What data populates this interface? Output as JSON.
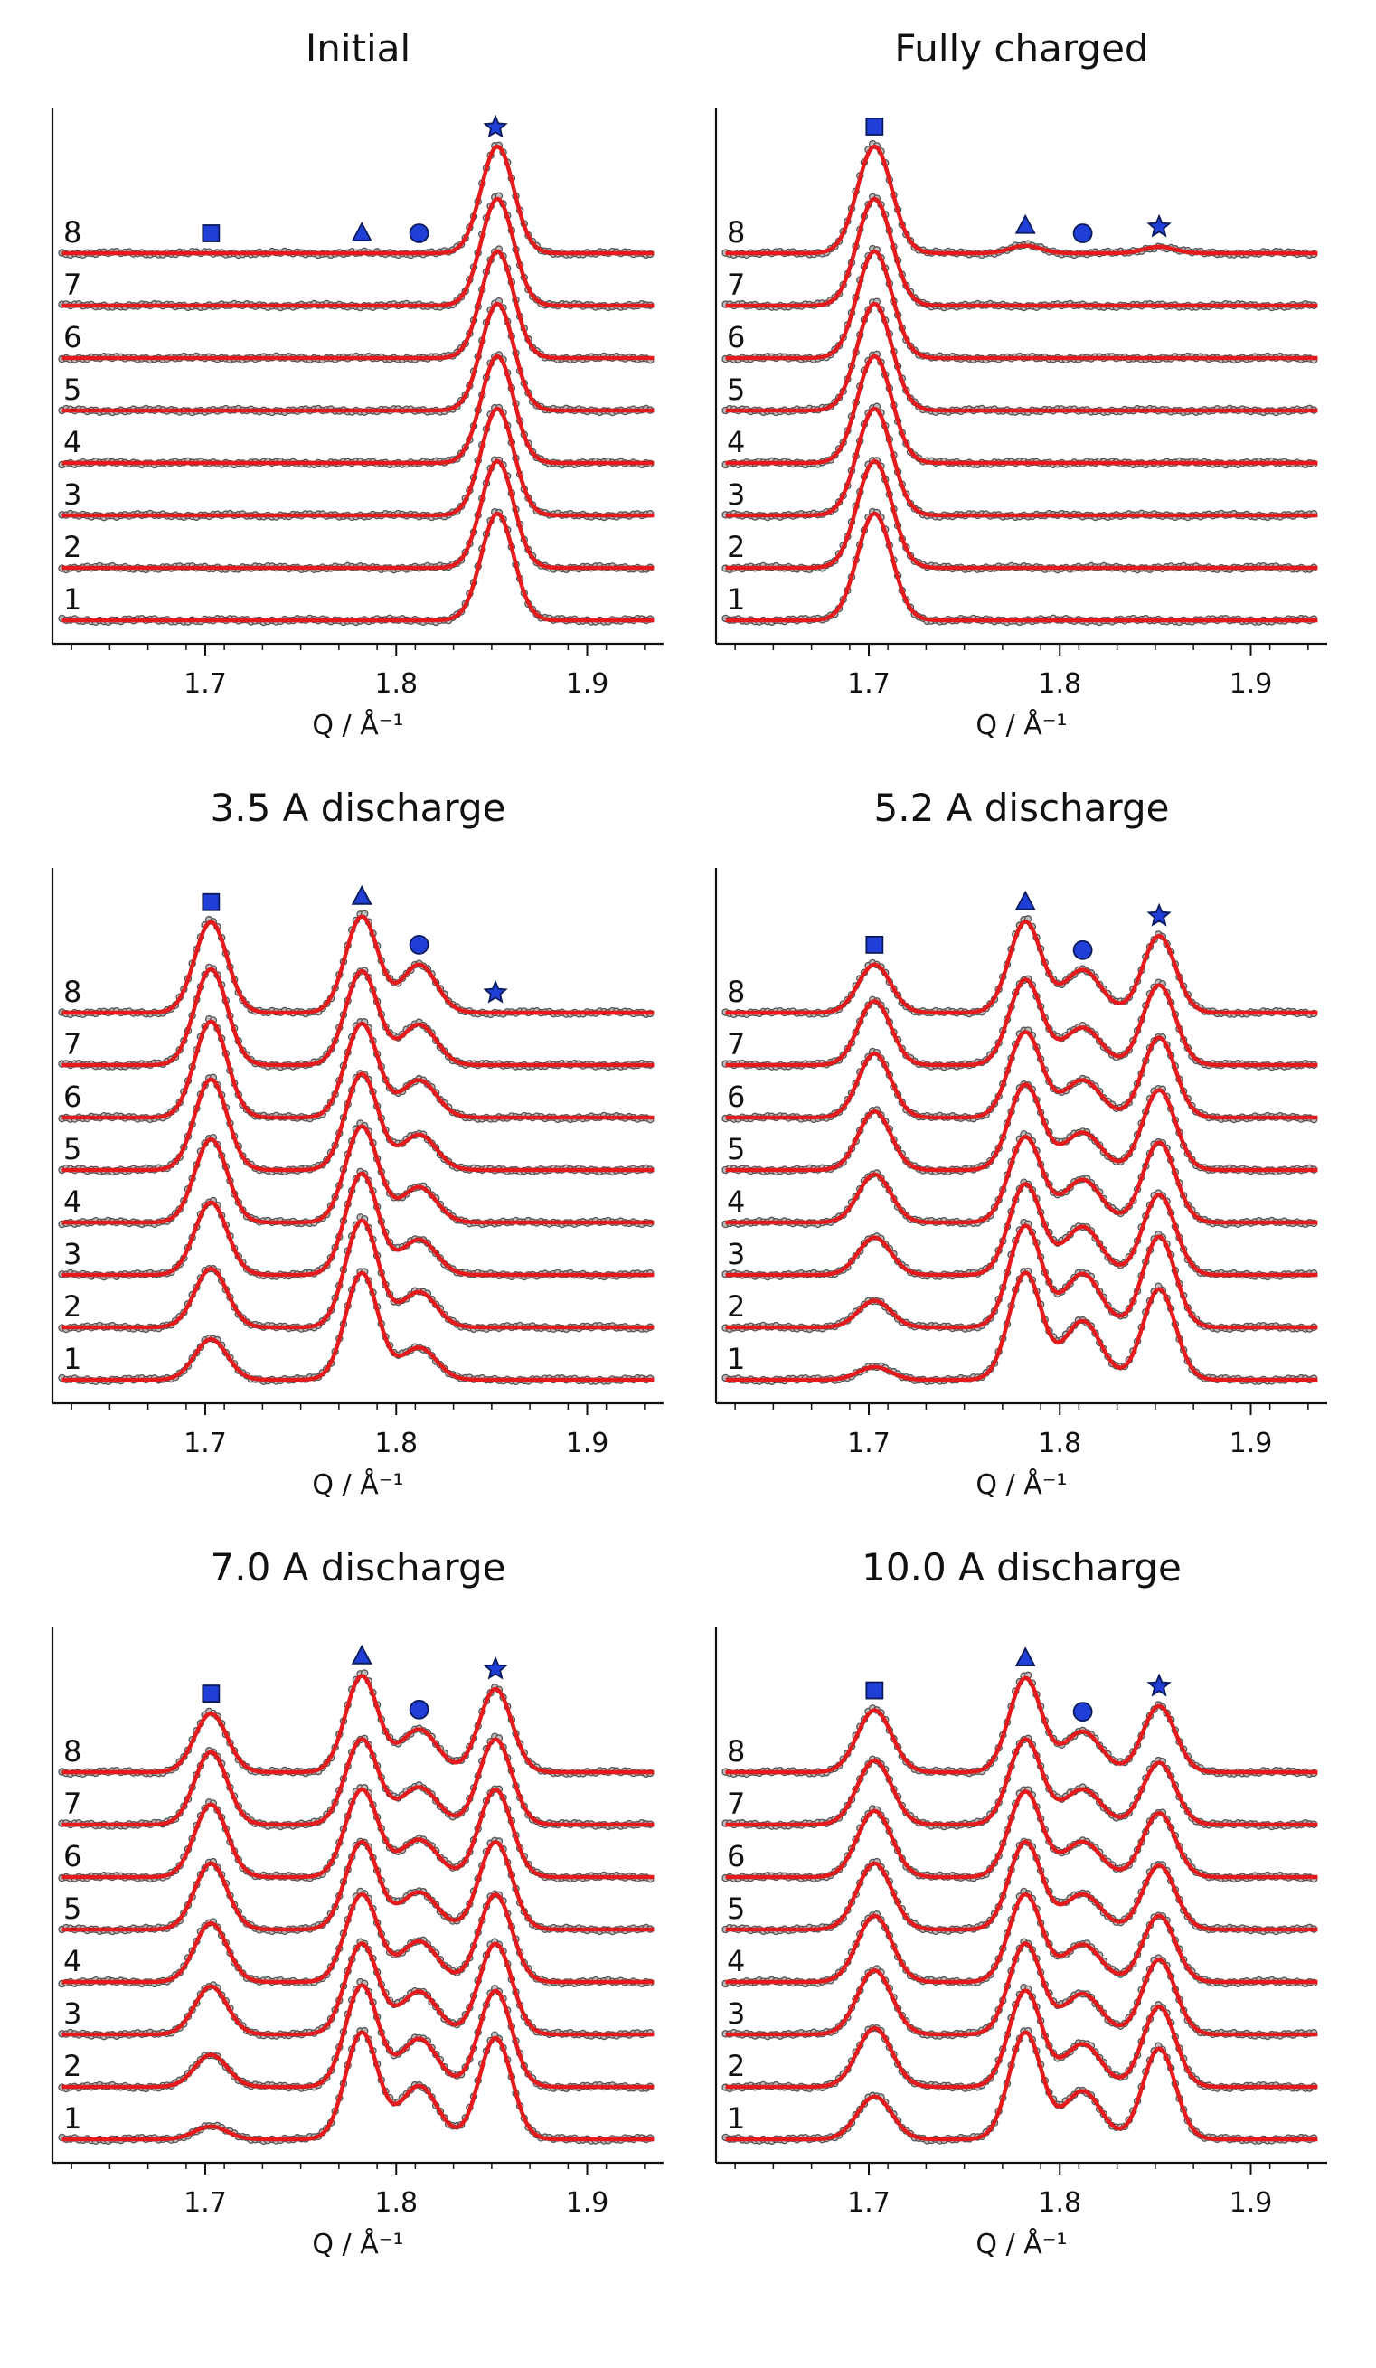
{
  "chart_data": [
    {
      "type": "line",
      "title": "Initial",
      "xlabel": "Q / Å⁻¹",
      "xlim": [
        1.62,
        1.94
      ],
      "xticks": [
        1.7,
        1.8,
        1.9
      ],
      "xtick_labels": [
        "1.7",
        "1.8",
        "1.9"
      ],
      "trace_labels": [
        "1",
        "2",
        "3",
        "4",
        "5",
        "6",
        "7",
        "8"
      ],
      "markers": [
        {
          "symbol": "square",
          "q": 1.703
        },
        {
          "symbol": "triangle",
          "q": 1.782
        },
        {
          "symbol": "circle",
          "q": 1.812
        },
        {
          "symbol": "star",
          "q": 1.852
        }
      ],
      "peaks": [
        {
          "q": 1.853,
          "width": 0.0085,
          "heights": [
            1.0,
            1.0,
            1.0,
            1.0,
            1.0,
            1.0,
            1.0,
            1.0
          ]
        }
      ]
    },
    {
      "type": "line",
      "title": "Fully charged",
      "xlabel": "Q / Å⁻¹",
      "xlim": [
        1.62,
        1.94
      ],
      "xticks": [
        1.7,
        1.8,
        1.9
      ],
      "xtick_labels": [
        "1.7",
        "1.8",
        "1.9"
      ],
      "trace_labels": [
        "1",
        "2",
        "3",
        "4",
        "5",
        "6",
        "7",
        "8"
      ],
      "markers": [
        {
          "symbol": "square",
          "q": 1.703
        },
        {
          "symbol": "triangle",
          "q": 1.782
        },
        {
          "symbol": "circle",
          "q": 1.812
        },
        {
          "symbol": "star",
          "q": 1.852
        }
      ],
      "peaks": [
        {
          "q": 1.703,
          "width": 0.009,
          "heights": [
            1.0,
            1.0,
            1.0,
            1.0,
            1.0,
            1.0,
            1.0,
            1.0
          ]
        },
        {
          "q": 1.782,
          "width": 0.008,
          "heights": [
            0,
            0,
            0,
            0,
            0,
            0,
            0,
            0.07
          ]
        },
        {
          "q": 1.852,
          "width": 0.008,
          "heights": [
            0,
            0,
            0,
            0,
            0,
            0,
            0,
            0.06
          ]
        }
      ]
    },
    {
      "type": "line",
      "title": "3.5 A discharge",
      "xlabel": "Q / Å⁻¹",
      "xlim": [
        1.62,
        1.94
      ],
      "xticks": [
        1.7,
        1.8,
        1.9
      ],
      "xtick_labels": [
        "1.7",
        "1.8",
        "1.9"
      ],
      "trace_labels": [
        "1",
        "2",
        "3",
        "4",
        "5",
        "6",
        "7",
        "8"
      ],
      "markers": [
        {
          "symbol": "square",
          "q": 1.703
        },
        {
          "symbol": "triangle",
          "q": 1.782
        },
        {
          "symbol": "circle",
          "q": 1.812
        },
        {
          "symbol": "star",
          "q": 1.852
        }
      ],
      "peaks": [
        {
          "q": 1.703,
          "width": 0.0085,
          "heights": [
            0.38,
            0.55,
            0.68,
            0.78,
            0.85,
            0.9,
            0.9,
            0.85
          ]
        },
        {
          "q": 1.782,
          "width": 0.0085,
          "heights": [
            1.0,
            1.0,
            0.95,
            0.9,
            0.9,
            0.88,
            0.88,
            0.9
          ]
        },
        {
          "q": 1.812,
          "width": 0.009,
          "heights": [
            0.3,
            0.33,
            0.33,
            0.33,
            0.33,
            0.35,
            0.38,
            0.45
          ]
        }
      ]
    },
    {
      "type": "line",
      "title": "5.2 A discharge",
      "xlabel": "Q / Å⁻¹",
      "xlim": [
        1.62,
        1.94
      ],
      "xticks": [
        1.7,
        1.8,
        1.9
      ],
      "xtick_labels": [
        "1.7",
        "1.8",
        "1.9"
      ],
      "trace_labels": [
        "1",
        "2",
        "3",
        "4",
        "5",
        "6",
        "7",
        "8"
      ],
      "markers": [
        {
          "symbol": "square",
          "q": 1.703
        },
        {
          "symbol": "triangle",
          "q": 1.782
        },
        {
          "symbol": "circle",
          "q": 1.812
        },
        {
          "symbol": "star",
          "q": 1.852
        }
      ],
      "peaks": [
        {
          "q": 1.703,
          "width": 0.0085,
          "heights": [
            0.12,
            0.25,
            0.35,
            0.45,
            0.55,
            0.6,
            0.6,
            0.45
          ]
        },
        {
          "q": 1.782,
          "width": 0.0085,
          "heights": [
            1.0,
            0.95,
            0.85,
            0.8,
            0.8,
            0.8,
            0.8,
            0.85
          ]
        },
        {
          "q": 1.812,
          "width": 0.0095,
          "heights": [
            0.55,
            0.5,
            0.45,
            0.4,
            0.35,
            0.35,
            0.35,
            0.4
          ]
        },
        {
          "q": 1.852,
          "width": 0.0085,
          "heights": [
            0.85,
            0.85,
            0.75,
            0.75,
            0.75,
            0.75,
            0.75,
            0.72
          ]
        }
      ]
    },
    {
      "type": "line",
      "title": "7.0 A discharge",
      "xlabel": "Q / Å⁻¹",
      "xlim": [
        1.62,
        1.94
      ],
      "xticks": [
        1.7,
        1.8,
        1.9
      ],
      "xtick_labels": [
        "1.7",
        "1.8",
        "1.9"
      ],
      "trace_labels": [
        "1",
        "2",
        "3",
        "4",
        "5",
        "6",
        "7",
        "8"
      ],
      "markers": [
        {
          "symbol": "square",
          "q": 1.703
        },
        {
          "symbol": "triangle",
          "q": 1.782
        },
        {
          "symbol": "circle",
          "q": 1.812
        },
        {
          "symbol": "star",
          "q": 1.852
        }
      ],
      "peaks": [
        {
          "q": 1.703,
          "width": 0.0085,
          "heights": [
            0.12,
            0.3,
            0.45,
            0.55,
            0.62,
            0.68,
            0.68,
            0.55
          ]
        },
        {
          "q": 1.782,
          "width": 0.0085,
          "heights": [
            1.0,
            0.95,
            0.85,
            0.82,
            0.82,
            0.82,
            0.8,
            0.9
          ]
        },
        {
          "q": 1.812,
          "width": 0.0095,
          "heights": [
            0.5,
            0.45,
            0.4,
            0.38,
            0.35,
            0.35,
            0.35,
            0.4
          ]
        },
        {
          "q": 1.852,
          "width": 0.0085,
          "heights": [
            0.95,
            0.9,
            0.85,
            0.82,
            0.82,
            0.82,
            0.8,
            0.78
          ]
        }
      ]
    },
    {
      "type": "line",
      "title": "10.0 A discharge",
      "xlabel": "Q / Å⁻¹",
      "xlim": [
        1.62,
        1.94
      ],
      "xticks": [
        1.7,
        1.8,
        1.9
      ],
      "xtick_labels": [
        "1.7",
        "1.8",
        "1.9"
      ],
      "trace_labels": [
        "1",
        "2",
        "3",
        "4",
        "5",
        "6",
        "7",
        "8"
      ],
      "markers": [
        {
          "symbol": "square",
          "q": 1.703
        },
        {
          "symbol": "triangle",
          "q": 1.782
        },
        {
          "symbol": "circle",
          "q": 1.812
        },
        {
          "symbol": "star",
          "q": 1.852
        }
      ],
      "peaks": [
        {
          "q": 1.703,
          "width": 0.009,
          "heights": [
            0.4,
            0.55,
            0.6,
            0.62,
            0.62,
            0.62,
            0.6,
            0.58
          ]
        },
        {
          "q": 1.782,
          "width": 0.0085,
          "heights": [
            1.0,
            0.9,
            0.85,
            0.82,
            0.82,
            0.8,
            0.8,
            0.88
          ]
        },
        {
          "q": 1.812,
          "width": 0.0095,
          "heights": [
            0.45,
            0.4,
            0.38,
            0.35,
            0.33,
            0.33,
            0.33,
            0.38
          ]
        },
        {
          "q": 1.852,
          "width": 0.0085,
          "heights": [
            0.85,
            0.75,
            0.7,
            0.62,
            0.6,
            0.6,
            0.58,
            0.62
          ]
        }
      ]
    }
  ],
  "colors": {
    "fit_line": "#e41a1c",
    "data_points": "#555555",
    "marker_fill": "#1f3fd6",
    "marker_edge": "#0a1a5a",
    "axes": "#111111"
  }
}
